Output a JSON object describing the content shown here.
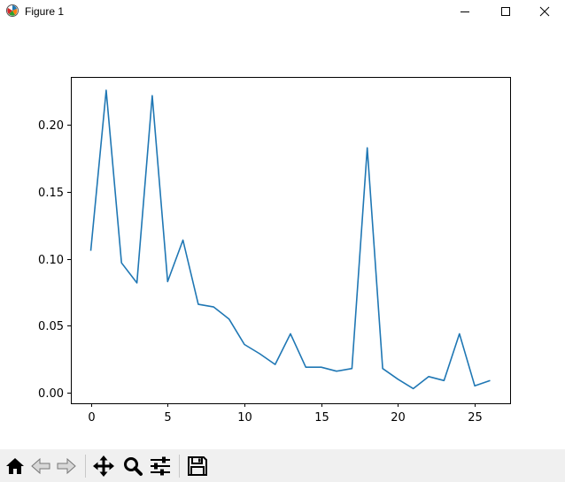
{
  "window": {
    "title": "Figure 1",
    "icons": {
      "app": "matplotlib-icon",
      "minimize": "minimize-icon",
      "maximize": "maximize-icon",
      "close": "close-icon"
    }
  },
  "toolbar": {
    "buttons": [
      {
        "name": "home-button",
        "icon": "home-icon"
      },
      {
        "name": "back-button",
        "icon": "arrow-left-icon"
      },
      {
        "name": "forward-button",
        "icon": "arrow-right-icon"
      },
      {
        "name": "pan-button",
        "icon": "move-icon"
      },
      {
        "name": "zoom-button",
        "icon": "magnifier-icon"
      },
      {
        "name": "configure-subplots-button",
        "icon": "sliders-icon"
      },
      {
        "name": "save-button",
        "icon": "floppy-disk-icon"
      }
    ]
  },
  "chart_data": {
    "type": "line",
    "title": "",
    "xlabel": "",
    "ylabel": "",
    "xlim": [
      -1.3,
      27.3
    ],
    "ylim": [
      -0.008,
      0.236
    ],
    "xticks": [
      0,
      5,
      10,
      15,
      20,
      25
    ],
    "xtick_labels": [
      "0",
      "5",
      "10",
      "15",
      "20",
      "25"
    ],
    "yticks": [
      0.0,
      0.05,
      0.1,
      0.15,
      0.2
    ],
    "ytick_labels": [
      "0.00",
      "0.05",
      "0.10",
      "0.15",
      "0.20"
    ],
    "grid": false,
    "color": "#1f77b4",
    "series": [
      {
        "x": [
          0,
          1,
          2,
          3,
          4,
          5,
          6,
          7,
          8,
          9,
          10,
          11,
          12,
          13,
          14,
          15,
          16,
          17,
          18,
          19,
          20,
          21,
          22,
          23,
          24,
          25,
          26
        ],
        "values": [
          0.106,
          0.226,
          0.097,
          0.082,
          0.222,
          0.083,
          0.114,
          0.066,
          0.064,
          0.055,
          0.036,
          0.029,
          0.021,
          0.044,
          0.019,
          0.019,
          0.016,
          0.018,
          0.183,
          0.018,
          0.01,
          0.003,
          0.012,
          0.009,
          0.044,
          0.005,
          0.009
        ]
      }
    ]
  }
}
